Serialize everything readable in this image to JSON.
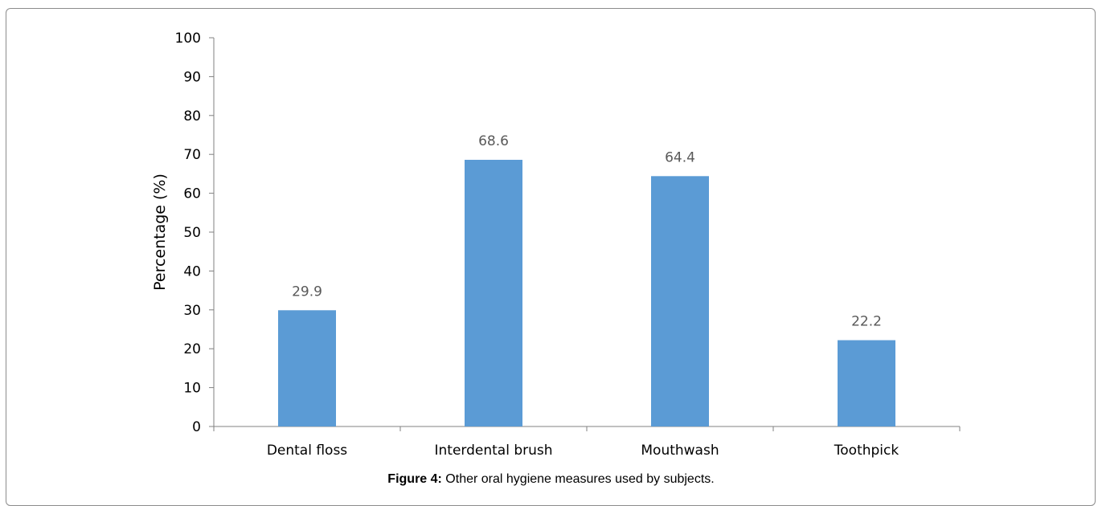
{
  "chart_data": {
    "type": "bar",
    "categories": [
      "Dental floss",
      "Interdental brush",
      "Mouthwash",
      "Toothpick"
    ],
    "values": [
      29.9,
      68.6,
      64.4,
      22.2
    ],
    "value_labels": [
      "29.9",
      "68.6",
      "64.4",
      "22.2"
    ],
    "ylabel": "Percentage (%)",
    "xlabel": "",
    "ylim": [
      0,
      100
    ],
    "yticks": [
      "0",
      "10",
      "20",
      "30",
      "40",
      "50",
      "60",
      "70",
      "80",
      "90",
      "100"
    ],
    "grid": false,
    "legend": "none",
    "bar_color": "#5b9bd5",
    "axis_color": "#808080",
    "label_color": "#595959"
  },
  "caption": {
    "label": "Figure 4:",
    "text": " Other oral hygiene measures used by subjects."
  }
}
